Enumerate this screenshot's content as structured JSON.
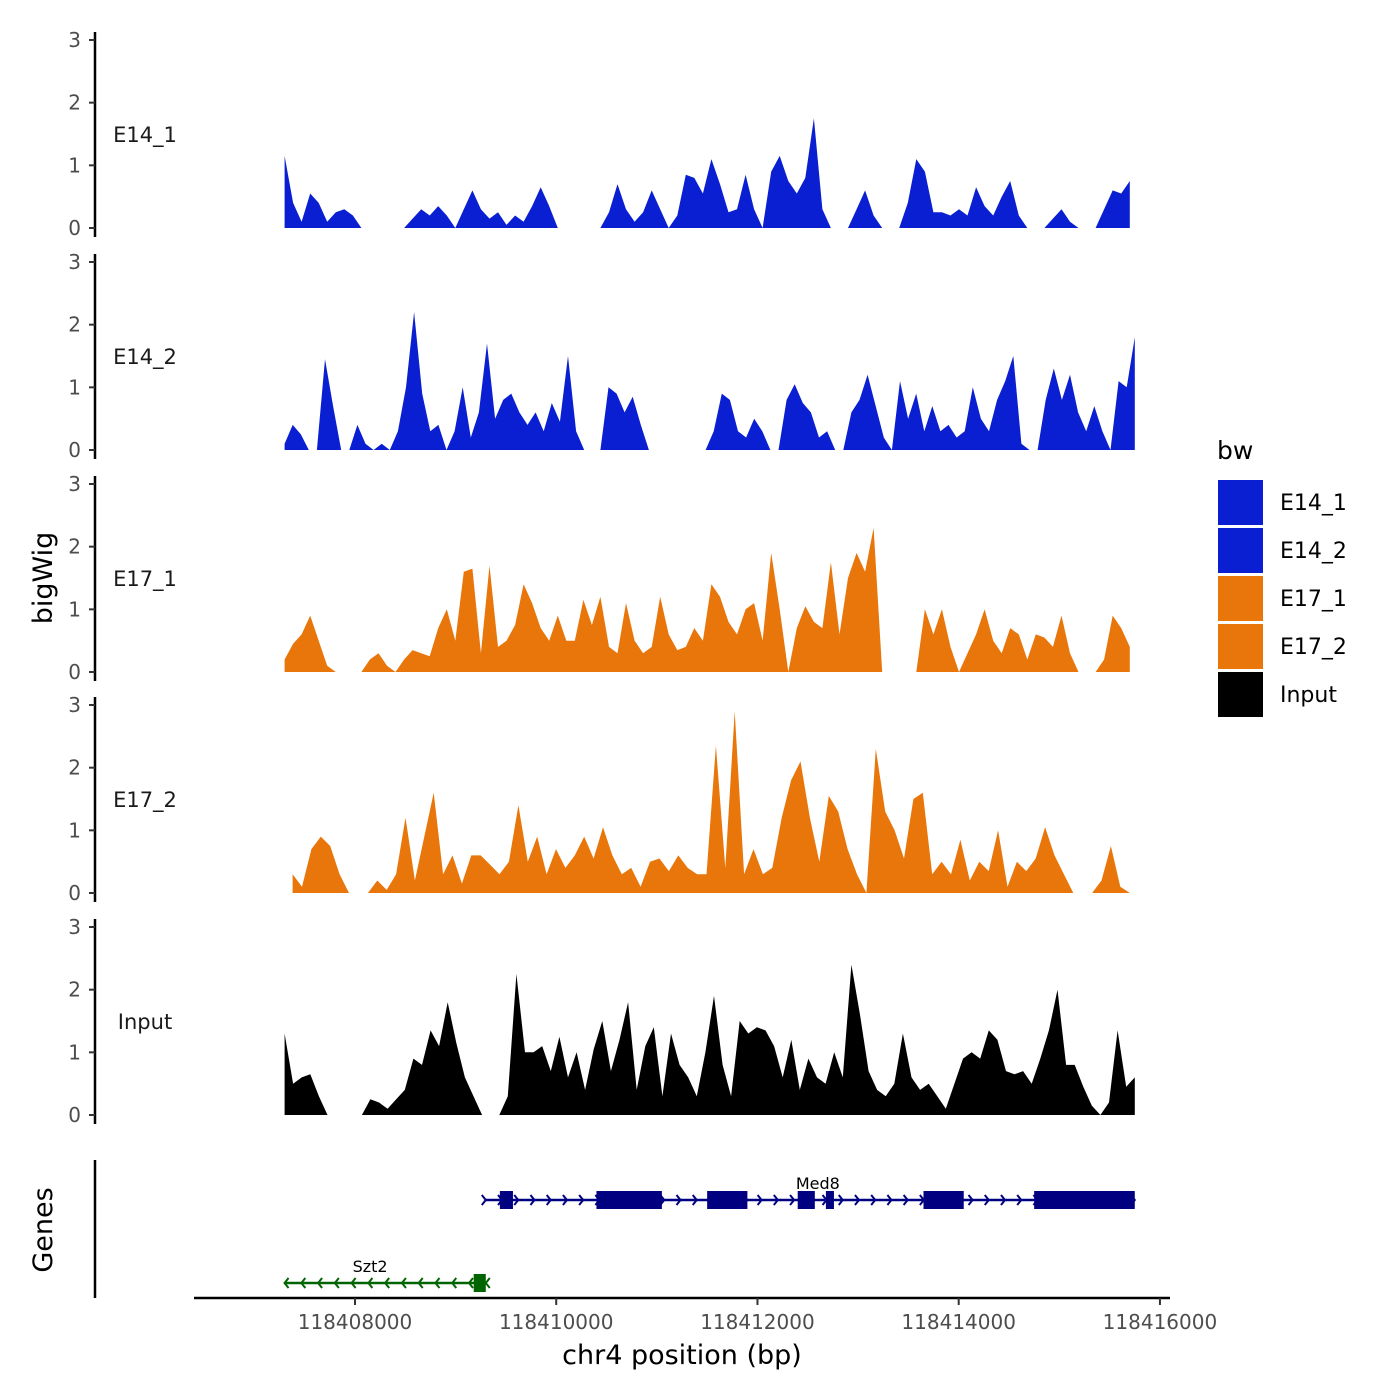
{
  "chart_data": {
    "type": "area",
    "title": "",
    "xlabel": "chr4 position (bp)",
    "ylabel": "bigWig",
    "genes_label": "Genes",
    "xlim": [
      118406400,
      118416100
    ],
    "ylim": [
      0,
      3
    ],
    "y_ticks": [
      "0",
      "1",
      "2",
      "3"
    ],
    "x_ticks": [
      {
        "value": 118408000,
        "label": "118408000"
      },
      {
        "value": 118410000,
        "label": "118410000"
      },
      {
        "value": 118412000,
        "label": "118412000"
      },
      {
        "value": 118414000,
        "label": "118414000"
      },
      {
        "value": 118416000,
        "label": "118416000"
      }
    ],
    "legend": {
      "title": "bw",
      "position": "right",
      "items": [
        {
          "name": "E14_1",
          "color": "#0a1fd1"
        },
        {
          "name": "E14_2",
          "color": "#0a1fd1"
        },
        {
          "name": "E17_1",
          "color": "#e8760a"
        },
        {
          "name": "E17_2",
          "color": "#e8760a"
        },
        {
          "name": "Input",
          "color": "#000000"
        }
      ]
    },
    "series": [
      {
        "name": "E14_1",
        "color": "#0a1fd1",
        "x_start": 118407300,
        "x_end": 118415700,
        "values": [
          1.15,
          0.4,
          0.1,
          0.55,
          0.4,
          0.1,
          0.25,
          0.3,
          0.2,
          0.0,
          0.0,
          0.0,
          0.0,
          0.0,
          0.0,
          0.15,
          0.3,
          0.2,
          0.35,
          0.2,
          0.0,
          0.3,
          0.6,
          0.3,
          0.15,
          0.25,
          0.05,
          0.2,
          0.1,
          0.35,
          0.65,
          0.35,
          0.0,
          0.0,
          0.0,
          0.0,
          0.0,
          0.0,
          0.25,
          0.7,
          0.3,
          0.1,
          0.25,
          0.6,
          0.3,
          0.0,
          0.2,
          0.85,
          0.8,
          0.55,
          1.1,
          0.7,
          0.25,
          0.3,
          0.85,
          0.3,
          0.0,
          0.9,
          1.15,
          0.75,
          0.55,
          0.8,
          1.75,
          0.3,
          0.0,
          0.0,
          0.0,
          0.3,
          0.6,
          0.2,
          0.0,
          0.0,
          0.0,
          0.4,
          1.1,
          0.9,
          0.25,
          0.25,
          0.2,
          0.3,
          0.2,
          0.65,
          0.35,
          0.2,
          0.5,
          0.75,
          0.2,
          0.0,
          0.0,
          0.0,
          0.15,
          0.3,
          0.1,
          0.0,
          0.0,
          0.0,
          0.3,
          0.6,
          0.55,
          0.75
        ]
      },
      {
        "name": "E14_2",
        "color": "#0a1fd1",
        "x_start": 118407300,
        "x_end": 118415750,
        "values": [
          0.1,
          0.4,
          0.25,
          0.0,
          0.0,
          1.45,
          0.7,
          0.0,
          0.0,
          0.4,
          0.1,
          0.0,
          0.1,
          0.0,
          0.3,
          1.0,
          2.2,
          0.9,
          0.3,
          0.4,
          0.0,
          0.3,
          1.0,
          0.2,
          0.6,
          1.7,
          0.5,
          0.8,
          0.9,
          0.6,
          0.4,
          0.6,
          0.3,
          0.75,
          0.45,
          1.5,
          0.3,
          0.0,
          0.0,
          0.0,
          1.0,
          0.9,
          0.6,
          0.85,
          0.4,
          0.0,
          0.0,
          0.0,
          0.0,
          0.0,
          0.0,
          0.0,
          0.0,
          0.3,
          0.9,
          0.8,
          0.3,
          0.2,
          0.5,
          0.3,
          0.0,
          0.0,
          0.8,
          1.05,
          0.75,
          0.6,
          0.2,
          0.3,
          0.0,
          0.0,
          0.6,
          0.8,
          1.2,
          0.7,
          0.2,
          0.0,
          1.1,
          0.5,
          0.9,
          0.3,
          0.7,
          0.3,
          0.4,
          0.2,
          0.3,
          1.0,
          0.5,
          0.3,
          0.8,
          1.1,
          1.5,
          0.1,
          0.0,
          0.0,
          0.8,
          1.3,
          0.8,
          1.2,
          0.6,
          0.3,
          0.7,
          0.3,
          0.0,
          1.1,
          1.0,
          1.8
        ]
      },
      {
        "name": "E17_1",
        "color": "#e8760a",
        "x_start": 118407300,
        "x_end": 118415700,
        "values": [
          0.2,
          0.45,
          0.6,
          0.9,
          0.5,
          0.1,
          0.0,
          0.0,
          0.0,
          0.0,
          0.2,
          0.3,
          0.1,
          0.0,
          0.2,
          0.35,
          0.3,
          0.25,
          0.7,
          1.0,
          0.5,
          1.6,
          1.65,
          0.3,
          1.7,
          0.4,
          0.5,
          0.75,
          1.4,
          1.1,
          0.7,
          0.5,
          0.9,
          0.5,
          0.5,
          1.15,
          0.75,
          1.2,
          0.4,
          0.3,
          1.1,
          0.5,
          0.3,
          0.4,
          1.2,
          0.6,
          0.35,
          0.4,
          0.7,
          0.5,
          1.4,
          1.2,
          0.8,
          0.6,
          1.0,
          1.1,
          0.5,
          1.9,
          1.0,
          0.0,
          0.7,
          1.05,
          0.8,
          0.7,
          1.75,
          0.6,
          1.5,
          1.9,
          1.6,
          2.3,
          0.0,
          0.0,
          0.0,
          0.0,
          0.0,
          1.0,
          0.6,
          1.0,
          0.4,
          0.0,
          0.3,
          0.6,
          1.0,
          0.5,
          0.3,
          0.7,
          0.6,
          0.2,
          0.6,
          0.55,
          0.4,
          0.9,
          0.3,
          0.0,
          0.0,
          0.0,
          0.2,
          0.9,
          0.7,
          0.4
        ]
      },
      {
        "name": "E17_2",
        "color": "#e8760a",
        "x_start": 118407380,
        "x_end": 118415700,
        "values": [
          0.3,
          0.1,
          0.7,
          0.9,
          0.75,
          0.3,
          0.0,
          0.0,
          0.0,
          0.2,
          0.05,
          0.3,
          1.2,
          0.2,
          0.9,
          1.6,
          0.3,
          0.6,
          0.15,
          0.6,
          0.6,
          0.45,
          0.3,
          0.5,
          1.4,
          0.5,
          0.9,
          0.3,
          0.7,
          0.4,
          0.6,
          0.9,
          0.55,
          1.05,
          0.6,
          0.3,
          0.4,
          0.1,
          0.5,
          0.55,
          0.35,
          0.6,
          0.4,
          0.3,
          0.3,
          2.35,
          0.4,
          2.9,
          0.3,
          0.7,
          0.3,
          0.4,
          1.2,
          1.8,
          2.1,
          1.2,
          0.5,
          1.55,
          1.3,
          0.7,
          0.3,
          0.0,
          2.3,
          1.3,
          1.0,
          0.55,
          1.5,
          1.6,
          0.3,
          0.5,
          0.3,
          0.85,
          0.2,
          0.5,
          0.35,
          1.0,
          0.1,
          0.5,
          0.35,
          0.55,
          1.05,
          0.6,
          0.3,
          0.0,
          0.0,
          0.0,
          0.2,
          0.75,
          0.1,
          0.0
        ]
      },
      {
        "name": "Input",
        "color": "#000000",
        "x_start": 118407300,
        "x_end": 118415750,
        "values": [
          1.3,
          0.5,
          0.6,
          0.65,
          0.3,
          0.0,
          0.0,
          0.0,
          0.0,
          0.0,
          0.25,
          0.2,
          0.1,
          0.25,
          0.4,
          0.9,
          0.8,
          1.35,
          1.1,
          1.8,
          1.15,
          0.6,
          0.3,
          0.0,
          0.0,
          0.0,
          0.3,
          2.25,
          1.0,
          1.0,
          1.1,
          0.7,
          1.25,
          0.6,
          1.0,
          0.4,
          1.05,
          1.5,
          0.7,
          1.2,
          1.8,
          0.4,
          1.1,
          1.4,
          0.3,
          1.3,
          0.8,
          0.6,
          0.3,
          1.0,
          1.9,
          0.8,
          0.3,
          1.5,
          1.3,
          1.4,
          1.35,
          1.1,
          0.6,
          1.2,
          0.4,
          0.9,
          0.6,
          0.5,
          1.0,
          0.6,
          2.4,
          1.6,
          0.7,
          0.4,
          0.3,
          0.5,
          1.3,
          0.6,
          0.4,
          0.5,
          0.3,
          0.1,
          0.5,
          0.9,
          1.0,
          0.9,
          1.35,
          1.2,
          0.7,
          0.65,
          0.7,
          0.5,
          0.9,
          1.35,
          2.0,
          0.8,
          0.8,
          0.45,
          0.15,
          0.0,
          0.2,
          1.35,
          0.45,
          0.6
        ]
      }
    ],
    "genes": [
      {
        "name": "Szt2",
        "strand": "-",
        "color": "#006400",
        "start": 118407300,
        "end": 118409300,
        "exons": [
          [
            118409180,
            118409300
          ]
        ]
      },
      {
        "name": "Med8",
        "strand": "+",
        "color": "#000080",
        "start": 118409300,
        "end": 118415750,
        "exons": [
          [
            118409440,
            118409570
          ],
          [
            118410400,
            118411050
          ],
          [
            118411500,
            118411900
          ],
          [
            118412400,
            118412570
          ],
          [
            118412680,
            118412760
          ],
          [
            118413650,
            118414050
          ],
          [
            118414750,
            118415750
          ]
        ]
      }
    ]
  }
}
